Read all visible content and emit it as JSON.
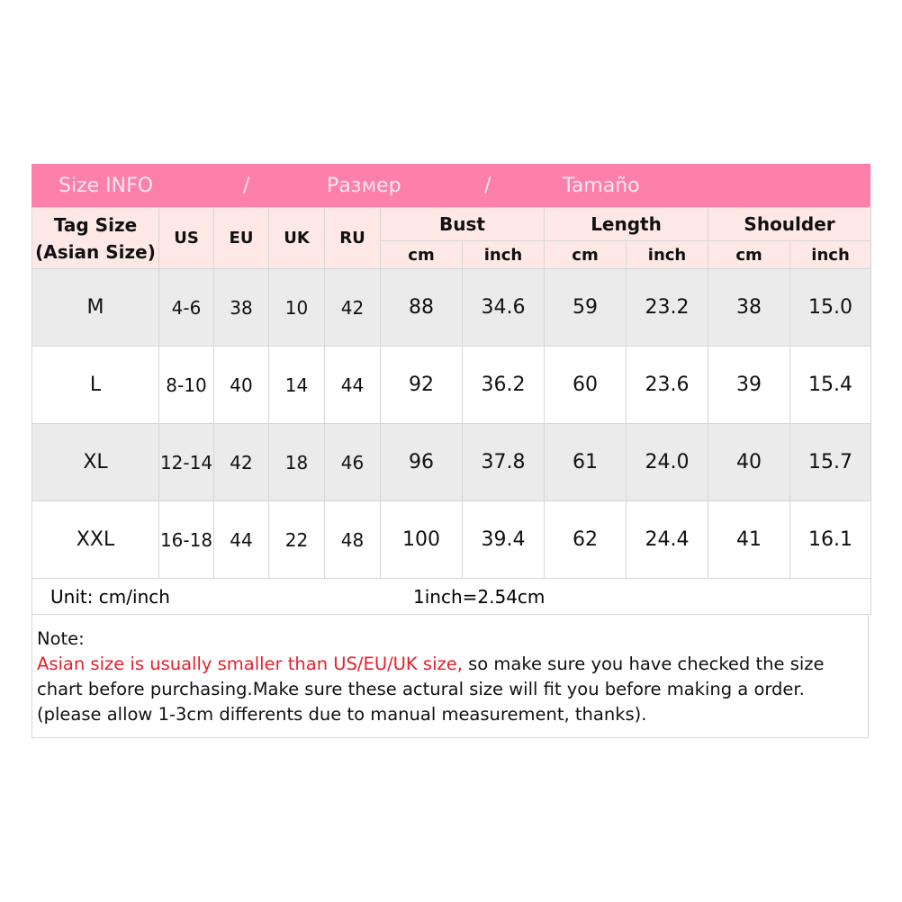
{
  "title": {
    "en": "Size INFO",
    "sep": "/",
    "ru": "Размер",
    "es": "Tamaño"
  },
  "headers": {
    "tag": "Tag Size",
    "tag_sub": "(Asian Size)",
    "us": "US",
    "eu": "EU",
    "uk": "UK",
    "ru": "RU",
    "bust": "Bust",
    "length": "Length",
    "shoulder": "Shoulder",
    "cm": "cm",
    "inch": "inch"
  },
  "rows": [
    [
      "M",
      "4-6",
      "38",
      "10",
      "42",
      "88",
      "34.6",
      "59",
      "23.2",
      "38",
      "15.0"
    ],
    [
      "L",
      "8-10",
      "40",
      "14",
      "44",
      "92",
      "36.2",
      "60",
      "23.6",
      "39",
      "15.4"
    ],
    [
      "XL",
      "12-14",
      "42",
      "18",
      "46",
      "96",
      "37.8",
      "61",
      "24.0",
      "40",
      "15.7"
    ],
    [
      "XXL",
      "16-18",
      "44",
      "22",
      "48",
      "100",
      "39.4",
      "62",
      "24.4",
      "41",
      "16.1"
    ]
  ],
  "unit": {
    "label": "Unit: cm/inch",
    "conversion": "1inch=2.54cm"
  },
  "note": {
    "label": "Note:",
    "warning": "Asian size is usually smaller than US/EU/UK size,",
    "text": " so make sure you have checked the size chart before purchasing.Make sure these actural size will fit you before making a order.(please allow 1-3cm differents due to manual measurement, thanks)."
  },
  "colors": {
    "title_bg": "#fd80aa",
    "header_bg": "#fde8e6",
    "warning": "#e8202c"
  }
}
